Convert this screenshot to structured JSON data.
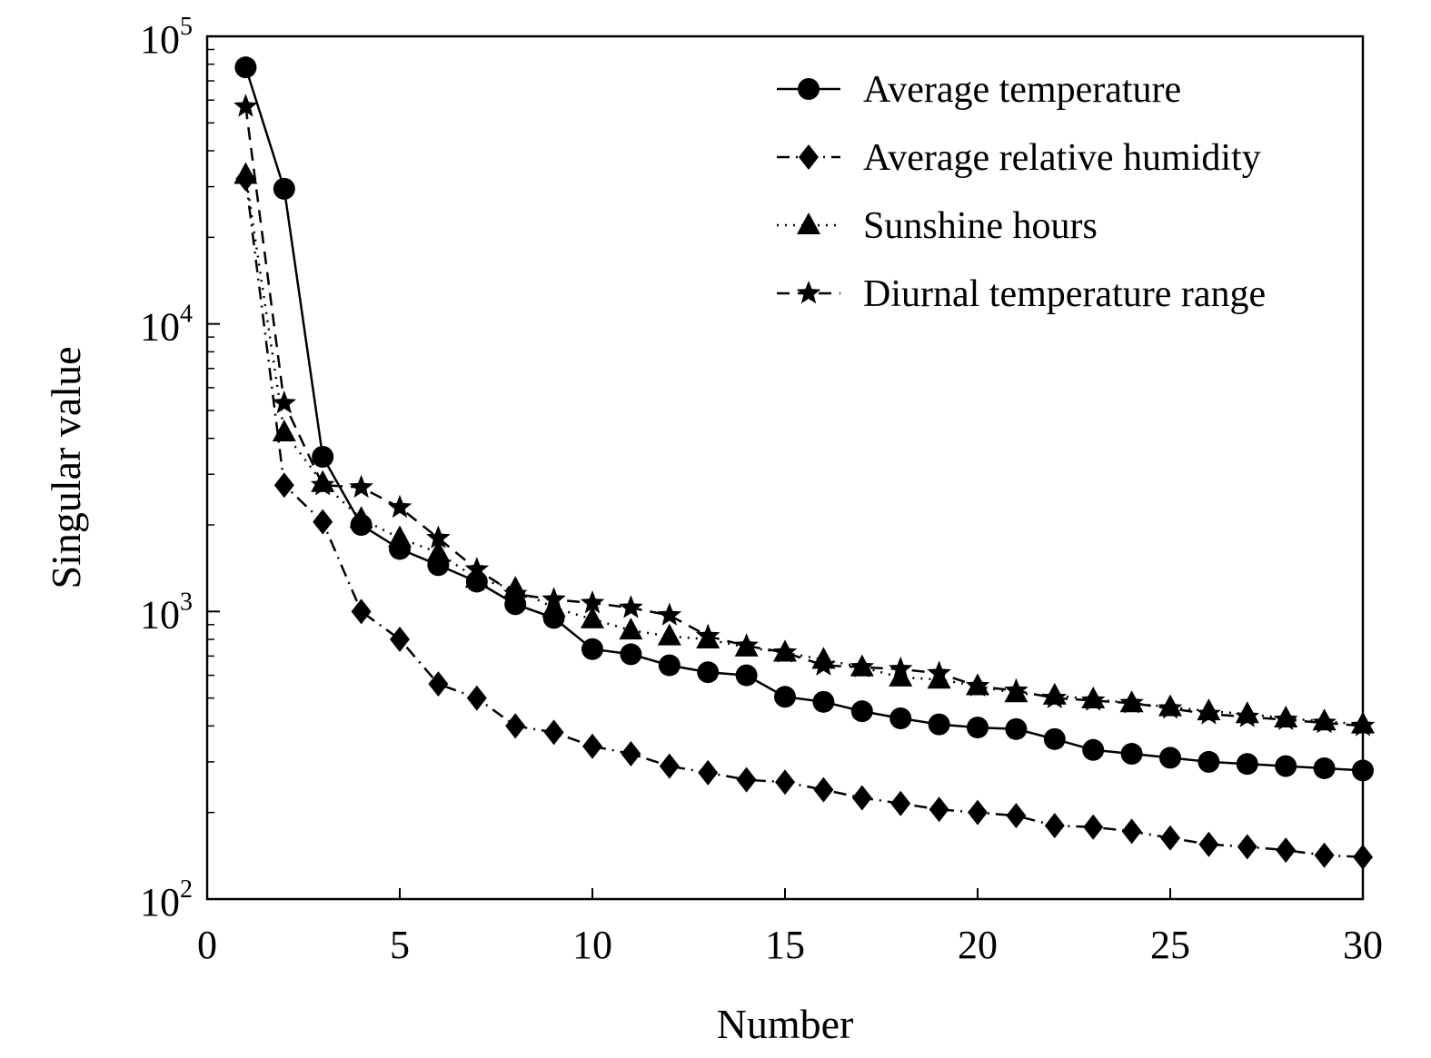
{
  "chart_data": {
    "type": "line",
    "title": "",
    "xlabel": "Number",
    "ylabel": "Singular value",
    "xlim": [
      0,
      30
    ],
    "ylim": [
      100,
      100000
    ],
    "yscale": "log",
    "grid": false,
    "legend_position": "top-right",
    "x_ticks": [
      0,
      5,
      10,
      15,
      20,
      25,
      30
    ],
    "x_tick_labels": [
      "0",
      "5",
      "10",
      "15",
      "20",
      "25",
      "30"
    ],
    "y_ticks": [
      {
        "value": 100,
        "base": "10",
        "exp": "2"
      },
      {
        "value": 1000,
        "base": "10",
        "exp": "3"
      },
      {
        "value": 10000,
        "base": "10",
        "exp": "4"
      },
      {
        "value": 100000,
        "base": "10",
        "exp": "5"
      }
    ],
    "x": [
      1,
      2,
      3,
      4,
      5,
      6,
      7,
      8,
      9,
      10,
      11,
      12,
      13,
      14,
      15,
      16,
      17,
      18,
      19,
      20,
      21,
      22,
      23,
      24,
      25,
      26,
      27,
      28,
      29,
      30
    ],
    "series": [
      {
        "name": "Average temperature",
        "marker": "circle",
        "line_style": "solid",
        "values": [
          78000,
          29500,
          3450,
          2000,
          1650,
          1450,
          1270,
          1060,
          950,
          740,
          710,
          650,
          615,
          600,
          505,
          485,
          450,
          425,
          405,
          395,
          390,
          360,
          330,
          320,
          310,
          300,
          295,
          290,
          285,
          280
        ]
      },
      {
        "name": "Average relative humidity",
        "marker": "diamond",
        "line_style": "dashdot",
        "values": [
          32000,
          2750,
          2050,
          1000,
          800,
          560,
          500,
          400,
          380,
          340,
          320,
          290,
          275,
          260,
          255,
          240,
          225,
          215,
          205,
          200,
          195,
          180,
          178,
          172,
          163,
          155,
          152,
          148,
          142,
          140
        ]
      },
      {
        "name": "Sunshine hours",
        "marker": "triangle",
        "line_style": "dotted",
        "values": [
          33000,
          4200,
          2800,
          2100,
          1800,
          1600,
          1300,
          1200,
          1030,
          940,
          860,
          820,
          800,
          750,
          720,
          680,
          640,
          590,
          580,
          550,
          520,
          510,
          495,
          480,
          465,
          450,
          440,
          425,
          415,
          405
        ]
      },
      {
        "name": "Diurnal temperature range",
        "marker": "star",
        "line_style": "dashed",
        "values": [
          57000,
          5300,
          2750,
          2700,
          2300,
          1800,
          1400,
          1150,
          1100,
          1070,
          1030,
          970,
          820,
          760,
          720,
          650,
          640,
          630,
          610,
          550,
          530,
          500,
          490,
          480,
          460,
          440,
          430,
          420,
          410,
          400
        ]
      }
    ]
  }
}
